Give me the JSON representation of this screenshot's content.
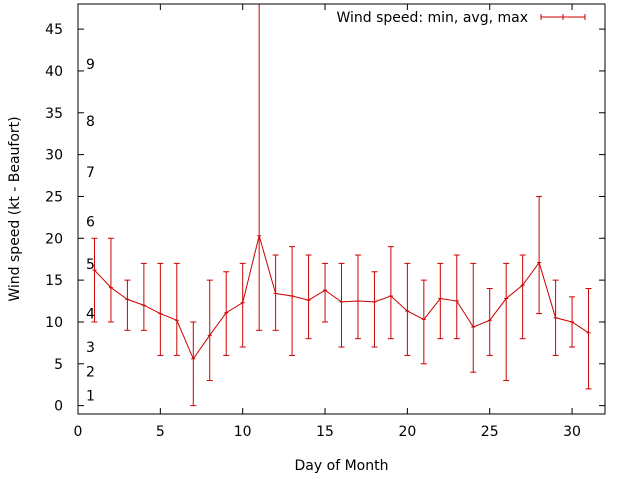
{
  "chart_data": {
    "type": "line",
    "xlabel": "Day of Month",
    "ylabel": "Wind speed (kt - Beaufort)",
    "xlim": [
      0,
      32
    ],
    "ylim": [
      -1,
      48
    ],
    "xticks": [
      0,
      5,
      10,
      15,
      20,
      25,
      30
    ],
    "yticks": [
      0,
      5,
      10,
      15,
      20,
      25,
      30,
      35,
      40,
      45
    ],
    "legend": {
      "label": "Wind speed: min, avg, max",
      "position": "top-right"
    },
    "series_color": "#cc0000",
    "series": [
      {
        "name": "Wind speed: min, avg, max",
        "x": [
          1,
          2,
          3,
          4,
          5,
          6,
          7,
          8,
          9,
          10,
          11,
          12,
          13,
          14,
          15,
          16,
          17,
          18,
          19,
          20,
          21,
          22,
          23,
          24,
          25,
          26,
          27,
          28,
          29,
          30,
          31
        ],
        "avg": [
          16.2,
          14.1,
          12.7,
          12.0,
          11.0,
          10.2,
          5.6,
          8.4,
          11.1,
          12.3,
          20.3,
          13.4,
          13.1,
          12.6,
          13.8,
          12.4,
          12.5,
          12.4,
          13.1,
          11.3,
          10.3,
          12.8,
          12.5,
          9.4,
          10.2,
          12.8,
          14.4,
          17.1,
          10.5,
          10.0,
          8.7
        ],
        "min": [
          10,
          10,
          9,
          9,
          6,
          6,
          0,
          3,
          6,
          7,
          9,
          9,
          6,
          8,
          10,
          7,
          8,
          7,
          8,
          6,
          5,
          8,
          8,
          4,
          6,
          3,
          8,
          11,
          6,
          7,
          2
        ],
        "max": [
          20,
          20,
          15,
          17,
          17,
          17,
          10,
          15,
          16,
          17,
          48,
          18,
          19,
          18,
          17,
          17,
          18,
          16,
          19,
          17,
          15,
          17,
          18,
          17,
          14,
          17,
          18,
          25,
          15,
          13,
          14
        ]
      }
    ],
    "beaufort_scale": [
      {
        "label": "1",
        "kt": 1.2
      },
      {
        "label": "2",
        "kt": 4.1
      },
      {
        "label": "3",
        "kt": 7.0
      },
      {
        "label": "4",
        "kt": 11.0
      },
      {
        "label": "5",
        "kt": 16.9
      },
      {
        "label": "6",
        "kt": 22.0
      },
      {
        "label": "7",
        "kt": 27.9
      },
      {
        "label": "8",
        "kt": 34.0
      },
      {
        "label": "9",
        "kt": 40.8
      }
    ]
  }
}
